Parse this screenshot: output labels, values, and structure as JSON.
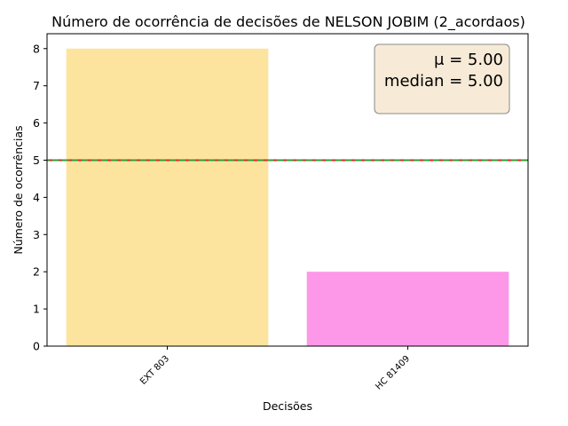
{
  "chart_data": {
    "type": "bar",
    "title": "Número de ocorrência de decisões de NELSON JOBIM (2_acordaos)",
    "xlabel": "Decisões",
    "ylabel": "Número de ocorrências",
    "categories": [
      "EXT 803",
      "HC 81409"
    ],
    "values": [
      8,
      2
    ],
    "bar_colors": [
      "#fde49e",
      "#fd97e8"
    ],
    "ylim": [
      0,
      8.4
    ],
    "yticks": [
      0,
      1,
      2,
      3,
      4,
      5,
      6,
      7,
      8
    ],
    "reference_lines": [
      {
        "value": 5.0,
        "color": "#d62728",
        "style": "dashed"
      },
      {
        "value": 5.0,
        "color": "#2ca02c",
        "style": "dashed"
      }
    ],
    "stats_box": {
      "mean_label": "μ = 5.00",
      "median_label": "median = 5.00",
      "position": "top-right",
      "background": "#f7ebd8"
    },
    "grid": false
  }
}
